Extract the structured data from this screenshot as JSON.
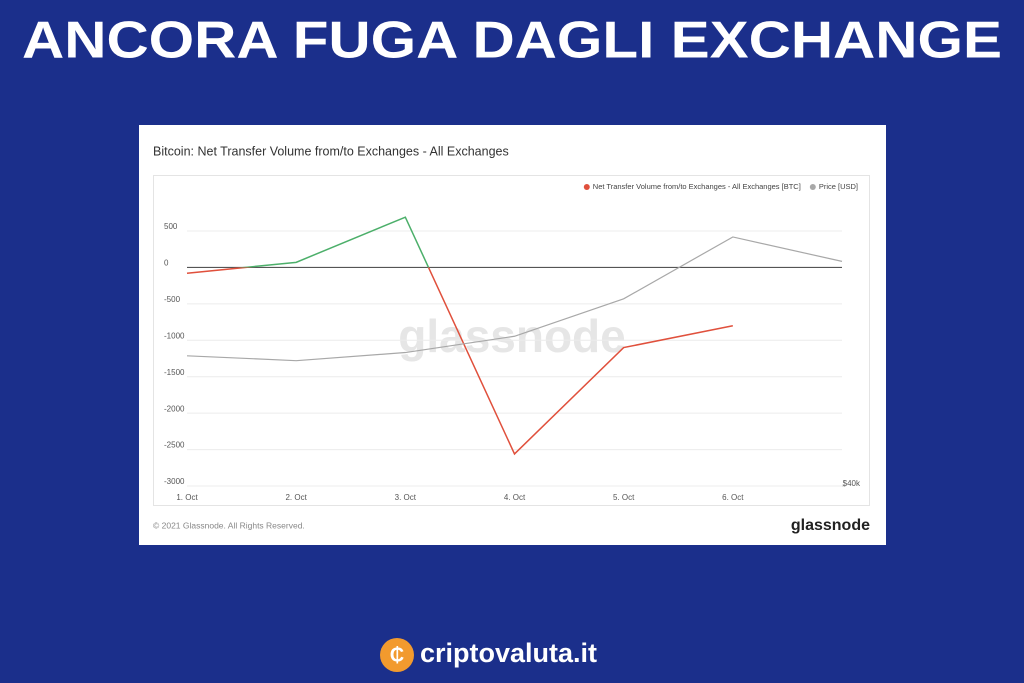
{
  "headline": "ANCORA FUGA DAGLI EXCHANGE",
  "site": "criptovaluta.it",
  "chart_data": {
    "type": "line",
    "title": "Bitcoin: Net Transfer Volume from/to Exchanges - All Exchanges",
    "categories": [
      "1. Oct",
      "2. Oct",
      "3. Oct",
      "4. Oct",
      "5. Oct",
      "6. Oct",
      null
    ],
    "series": [
      {
        "name": "Net Transfer Volume from/to Exchanges - All Exchanges [BTC]",
        "color": "#e0503c",
        "positive_color": "#4caf6a",
        "values": [
          -80,
          70,
          690,
          -2560,
          -1100,
          -800,
          null
        ]
      },
      {
        "name": "Price [USD]",
        "color": "#a8a8a8",
        "axis": "y2",
        "values": [
          48000,
          47700,
          48200,
          49200,
          51500,
          55300,
          53800
        ]
      }
    ],
    "ylim": [
      -3000,
      1200
    ],
    "yticks": [
      500,
      0,
      -500,
      -1000,
      -1500,
      -2000,
      -2500,
      -3000
    ],
    "y2lim": [
      40000,
      58800
    ],
    "y2ticks": [
      {
        "value": 40000,
        "label": "$40k"
      }
    ],
    "grid": true,
    "legend": "top-right",
    "watermark": "glassnode",
    "copyright": "© 2021 Glassnode. All Rights Reserved.",
    "brand": "glassnode"
  }
}
